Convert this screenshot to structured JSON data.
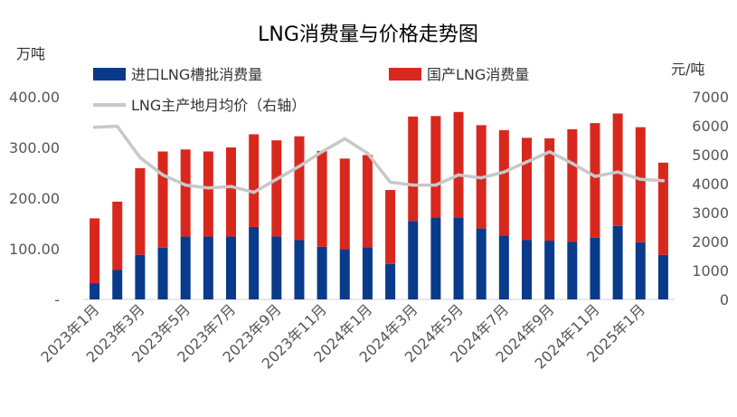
{
  "chart_data": {
    "type": "bar",
    "title": "LNG消费量与价格走势图",
    "ylabel": "万吨",
    "y2label": "元/吨",
    "ylim": [
      0,
      400
    ],
    "y2lim": [
      0,
      7000
    ],
    "yticks": [
      "-",
      "100.00",
      "200.00",
      "300.00",
      "400.00"
    ],
    "y2ticks": [
      "0",
      "1000",
      "2000",
      "3000",
      "4000",
      "5000",
      "6000",
      "7000"
    ],
    "stacked": true,
    "grid": false,
    "legend_position": "top",
    "x_tick_labels": [
      "2023年1月",
      "2023年3月",
      "2023年5月",
      "2023年7月",
      "2023年9月",
      "2023年11月",
      "2024年1月",
      "2024年3月",
      "2024年5月",
      "2024年7月",
      "2024年9月",
      "2024年11月",
      "2025年1月"
    ],
    "categories": [
      "2023-01",
      "2023-02",
      "2023-03",
      "2023-04",
      "2023-05",
      "2023-06",
      "2023-07",
      "2023-08",
      "2023-09",
      "2023-10",
      "2023-11",
      "2023-12",
      "2024-01",
      "2024-02",
      "2024-03",
      "2024-04",
      "2024-05",
      "2024-06",
      "2024-07",
      "2024-08",
      "2024-09",
      "2024-10",
      "2024-11",
      "2024-12",
      "2025-01",
      "2025-02"
    ],
    "series": [
      {
        "name": "进口LNG槽批消费量",
        "kind": "bar",
        "axis": "left",
        "color": "#0a3a8a",
        "values": [
          32,
          58,
          88,
          102,
          124,
          124,
          124,
          143,
          124,
          117,
          104,
          99,
          103,
          70,
          155,
          162,
          162,
          140,
          126,
          117,
          116,
          114,
          122,
          145,
          113,
          88
        ]
      },
      {
        "name": "国产LNG消费量",
        "kind": "bar",
        "axis": "left",
        "color": "#d8281e",
        "values": [
          128,
          135,
          171,
          190,
          172,
          168,
          176,
          183,
          190,
          205,
          189,
          179,
          182,
          146,
          206,
          200,
          208,
          204,
          208,
          202,
          202,
          222,
          226,
          222,
          227,
          182
        ]
      },
      {
        "name": "LNG主产地月均价（右轴）",
        "kind": "line",
        "axis": "right",
        "color": "#c8c8c8",
        "values": [
          5950,
          5980,
          4900,
          4300,
          3950,
          3850,
          3900,
          3700,
          4150,
          4600,
          5100,
          5550,
          5050,
          4050,
          3950,
          3950,
          4300,
          4200,
          4400,
          4750,
          5100,
          4700,
          4250,
          4400,
          4150,
          4100
        ]
      }
    ]
  }
}
